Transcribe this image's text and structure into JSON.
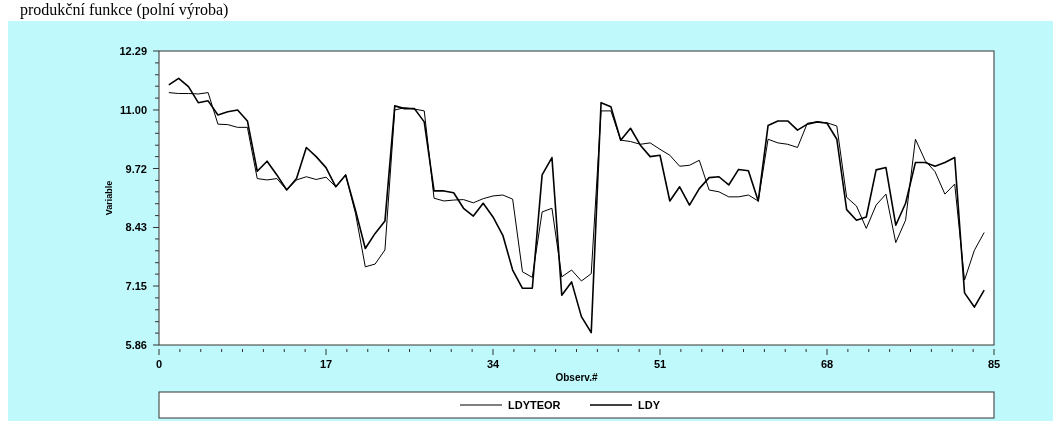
{
  "chart_data": {
    "type": "line",
    "title": "produkční funkce (polní výroba)",
    "xlabel": "Observ.#",
    "ylabel": "Variable",
    "x": [
      1,
      2,
      3,
      4,
      5,
      6,
      7,
      8,
      9,
      10,
      11,
      12,
      13,
      14,
      15,
      16,
      17,
      18,
      19,
      20,
      21,
      22,
      23,
      24,
      25,
      26,
      27,
      28,
      29,
      30,
      31,
      32,
      33,
      34,
      35,
      36,
      37,
      38,
      39,
      40,
      41,
      42,
      43,
      44,
      45,
      46,
      47,
      48,
      49,
      50,
      51,
      52,
      53,
      54,
      55,
      56,
      57,
      58,
      59,
      60,
      61,
      62,
      63,
      64,
      65,
      66,
      67,
      68,
      69,
      70,
      71,
      72,
      73,
      74,
      75,
      76,
      77,
      78,
      79,
      80,
      81,
      82,
      83,
      84
    ],
    "series": [
      {
        "name": "LDYTEOR",
        "color": "#000000",
        "values": [
          11.38,
          11.36,
          11.36,
          11.35,
          11.38,
          10.69,
          10.68,
          10.62,
          10.62,
          9.5,
          9.47,
          9.5,
          9.25,
          9.47,
          9.54,
          9.48,
          9.53,
          9.32,
          9.58,
          8.74,
          7.57,
          7.63,
          7.94,
          11.0,
          11.05,
          11.02,
          10.98,
          9.07,
          9.01,
          9.03,
          9.04,
          8.97,
          9.06,
          9.12,
          9.14,
          9.05,
          7.46,
          7.34,
          8.77,
          8.85,
          7.35,
          7.5,
          7.26,
          7.42,
          10.98,
          10.98,
          10.34,
          10.31,
          10.25,
          10.28,
          10.14,
          10.01,
          9.77,
          9.79,
          9.9,
          9.25,
          9.21,
          9.1,
          9.1,
          9.14,
          9.01,
          10.36,
          10.28,
          10.25,
          10.18,
          10.71,
          10.74,
          10.72,
          10.65,
          9.09,
          8.9,
          8.41,
          8.92,
          9.16,
          8.1,
          8.59,
          10.36,
          9.89,
          9.65,
          9.16,
          9.38,
          7.28,
          7.93,
          8.32
        ]
      },
      {
        "name": "LDY",
        "color": "#000000",
        "values": [
          11.55,
          11.69,
          11.51,
          11.16,
          11.2,
          10.89,
          10.96,
          11.0,
          10.76,
          9.66,
          9.88,
          9.58,
          9.25,
          9.5,
          10.18,
          9.98,
          9.74,
          9.32,
          9.58,
          8.81,
          7.97,
          8.3,
          8.57,
          11.09,
          11.03,
          11.03,
          10.74,
          9.23,
          9.23,
          9.19,
          8.85,
          8.68,
          8.96,
          8.66,
          8.26,
          7.5,
          7.1,
          7.1,
          9.58,
          9.96,
          6.95,
          7.24,
          6.48,
          6.13,
          11.16,
          11.07,
          10.34,
          10.6,
          10.23,
          9.98,
          10.01,
          9.01,
          9.32,
          8.92,
          9.28,
          9.52,
          9.54,
          9.36,
          9.7,
          9.67,
          9.01,
          10.66,
          10.76,
          10.76,
          10.56,
          10.69,
          10.74,
          10.71,
          10.36,
          8.82,
          8.59,
          8.66,
          9.69,
          9.74,
          8.48,
          8.96,
          9.85,
          9.85,
          9.77,
          9.85,
          9.96,
          7.0,
          6.69,
          7.06
        ]
      }
    ],
    "xlim": [
      0,
      85
    ],
    "xticks": [
      0,
      {
        "value": 2.125,
        "label": null
      },
      {
        "value": 4.25,
        "label": null
      },
      {
        "value": 6.375,
        "label": null
      },
      {
        "value": 8.5,
        "label": null
      },
      {
        "value": 10.625,
        "label": null
      },
      {
        "value": 12.75,
        "label": null
      },
      {
        "value": 14.875,
        "label": null
      },
      17,
      {
        "value": 19.125,
        "label": null
      },
      {
        "value": 21.25,
        "label": null
      },
      {
        "value": 23.375,
        "label": null
      },
      {
        "value": 25.5,
        "label": null
      },
      {
        "value": 27.625,
        "label": null
      },
      {
        "value": 29.75,
        "label": null
      },
      {
        "value": 31.875,
        "label": null
      },
      34,
      {
        "value": 36.125,
        "label": null
      },
      {
        "value": 38.25,
        "label": null
      },
      {
        "value": 40.375,
        "label": null
      },
      {
        "value": 42.5,
        "label": null
      },
      {
        "value": 44.625,
        "label": null
      },
      {
        "value": 46.75,
        "label": null
      },
      {
        "value": 48.875,
        "label": null
      },
      51,
      {
        "value": 53.125,
        "label": null
      },
      {
        "value": 55.25,
        "label": null
      },
      {
        "value": 57.375,
        "label": null
      },
      {
        "value": 59.5,
        "label": null
      },
      {
        "value": 61.625,
        "label": null
      },
      {
        "value": 63.75,
        "label": null
      },
      {
        "value": 65.875,
        "label": null
      },
      68,
      {
        "value": 70.125,
        "label": null
      },
      {
        "value": 72.25,
        "label": null
      },
      {
        "value": 74.375,
        "label": null
      },
      {
        "value": 76.5,
        "label": null
      },
      {
        "value": 78.625,
        "label": null
      },
      {
        "value": 80.75,
        "label": null
      },
      {
        "value": 82.875,
        "label": null
      },
      85
    ],
    "ylim": [
      5.86,
      12.29
    ],
    "yticks": [
      5.86,
      {
        "value": 6.12,
        "label": null
      },
      {
        "value": 6.37,
        "label": null
      },
      {
        "value": 6.63,
        "label": null
      },
      {
        "value": 6.89,
        "label": null
      },
      7.15,
      {
        "value": 7.41,
        "label": null
      },
      {
        "value": 7.66,
        "label": null
      },
      {
        "value": 7.92,
        "label": null
      },
      {
        "value": 8.18,
        "label": null
      },
      8.43,
      {
        "value": 8.69,
        "label": null
      },
      {
        "value": 8.95,
        "label": null
      },
      {
        "value": 9.21,
        "label": null
      },
      {
        "value": 9.46,
        "label": null
      },
      9.72,
      {
        "value": 9.98,
        "label": null
      },
      {
        "value": 10.23,
        "label": null
      },
      {
        "value": 10.49,
        "label": null
      },
      {
        "value": 10.74,
        "label": null
      },
      {
        "value": 11,
        "label": "11.00"
      },
      {
        "value": 11.26,
        "label": null
      },
      {
        "value": 11.52,
        "label": null
      },
      {
        "value": 11.77,
        "label": null
      },
      {
        "value": 12.03,
        "label": null
      },
      12.29
    ],
    "legend": "bottom",
    "grid": false,
    "marker": "none",
    "line_style": "solid"
  }
}
